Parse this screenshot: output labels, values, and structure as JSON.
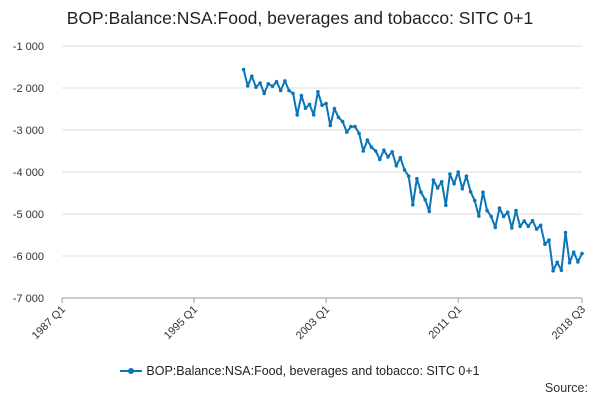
{
  "chart_data": {
    "type": "line",
    "title": "BOP:Balance:NSA:Food, beverages and tobacco: SITC 0+1",
    "xlabel": "",
    "ylabel": "",
    "ylim": [
      -7000,
      -1000
    ],
    "yticks": [
      -1000,
      -2000,
      -3000,
      -4000,
      -5000,
      -6000,
      -7000
    ],
    "ytick_labels": [
      "-1 000",
      "-2 000",
      "-3 000",
      "-4 000",
      "-5 000",
      "-6 000",
      "-7 000"
    ],
    "xlim_quarter_index": [
      0,
      126
    ],
    "xticks": [
      {
        "label": "1987 Q1",
        "q": 0
      },
      {
        "label": "1995 Q1",
        "q": 32
      },
      {
        "label": "2003 Q1",
        "q": 64
      },
      {
        "label": "2011 Q1",
        "q": 96
      },
      {
        "label": "2018 Q3",
        "q": 126
      }
    ],
    "start_period": "1998 Q1",
    "color": "#0a75b8",
    "grid": "horizontal",
    "series": [
      {
        "name": "BOP:Balance:NSA:Food, beverages and tobacco: SITC 0+1",
        "values": [
          -1560,
          -1950,
          -1720,
          -1980,
          -1880,
          -2130,
          -1900,
          -1960,
          -1850,
          -2060,
          -1830,
          -2060,
          -2130,
          -2640,
          -2180,
          -2480,
          -2390,
          -2640,
          -2090,
          -2410,
          -2370,
          -2890,
          -2490,
          -2700,
          -2800,
          -3050,
          -2920,
          -2920,
          -3080,
          -3500,
          -3240,
          -3410,
          -3500,
          -3700,
          -3480,
          -3640,
          -3520,
          -3850,
          -3660,
          -3950,
          -4100,
          -4780,
          -4160,
          -4480,
          -4660,
          -4940,
          -4190,
          -4380,
          -4230,
          -4790,
          -4050,
          -4280,
          -4000,
          -4400,
          -4100,
          -4470,
          -4680,
          -5050,
          -4480,
          -4920,
          -5060,
          -5320,
          -4860,
          -5060,
          -4960,
          -5330,
          -4920,
          -5290,
          -5170,
          -5290,
          -5160,
          -5360,
          -5270,
          -5720,
          -5620,
          -6350,
          -6150,
          -6340,
          -5440,
          -6160,
          -5910,
          -6140,
          -5940
        ]
      }
    ]
  },
  "legend": {
    "label": "BOP:Balance:NSA:Food, beverages and tobacco: SITC 0+1"
  },
  "source_label": "Source:"
}
